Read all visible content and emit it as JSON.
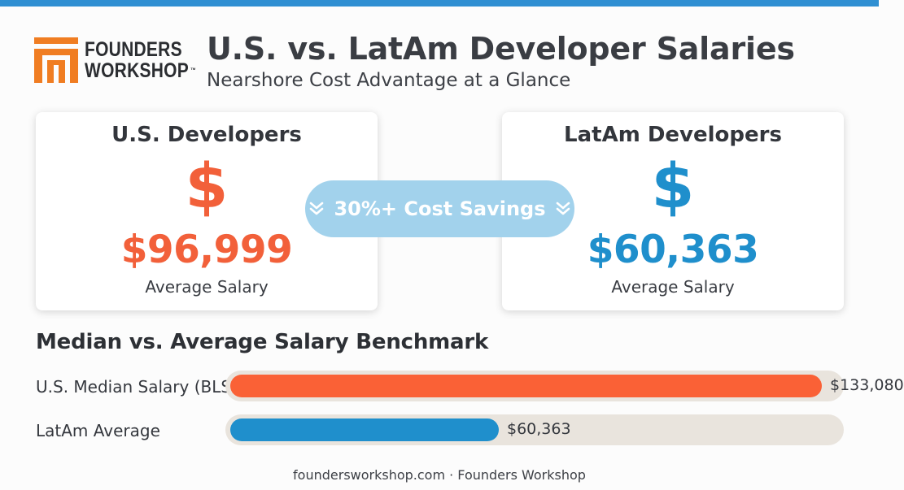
{
  "brand": {
    "logo_line1": "FOUNDERS",
    "logo_line2": "WORKSHOP",
    "logo_tm": "™",
    "logo_color": "#f07d22",
    "logo_icon": "founders-workshop-logo-icon"
  },
  "header": {
    "title": "U.S. vs. LatAm Developer Salaries",
    "subtitle": "Nearshore Cost Advantage at a Glance"
  },
  "cards": {
    "us": {
      "title": "U.S. Developers",
      "symbol": "$",
      "amount": "$96,999",
      "label": "Average Salary",
      "color": "#f2603a"
    },
    "latam": {
      "title": "LatAm Developers",
      "symbol": "$",
      "amount": "$60,363",
      "label": "Average Salary",
      "color": "#1f8fcc"
    }
  },
  "savings": {
    "text": "30%+ Cost Savings",
    "icon": "double-chevron-down-icon",
    "color": "#a2d2ec"
  },
  "chart_data": {
    "type": "bar",
    "orientation": "horizontal",
    "title": "Median vs. Average Salary Benchmark",
    "categories": [
      "U.S. Median Salary (BLS)",
      "LatAm Average"
    ],
    "values": [
      133080,
      60363
    ],
    "value_labels": [
      "$133,080",
      "$60,363"
    ],
    "colors": [
      "#fa6136",
      "#1f8fcc"
    ],
    "track_color": "#e9e4dd",
    "xlim": [
      0,
      137000
    ],
    "grid": false
  },
  "footer": {
    "text": "foundersworkshop.com · Founders Workshop"
  }
}
